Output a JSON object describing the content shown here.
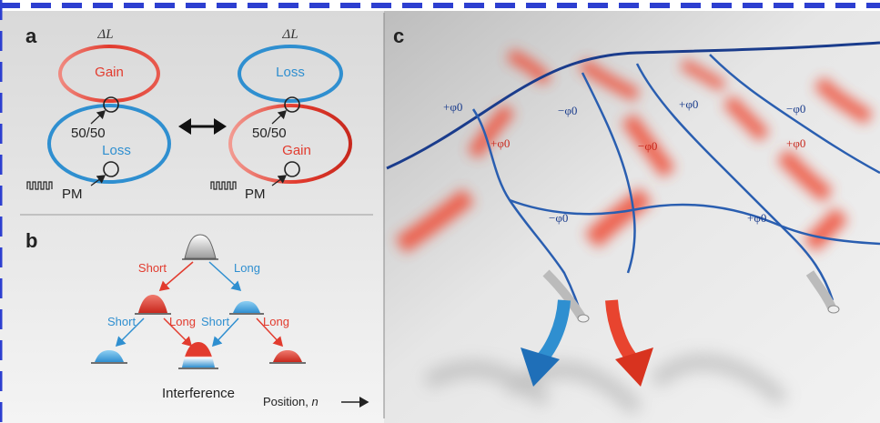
{
  "colors": {
    "gain_red": "#e23b2e",
    "loss_blue": "#2f8fd0",
    "fiber_blue": "#1d4f9a",
    "dark_blue": "#1a3c8c",
    "panel_bg": "#ececec"
  },
  "panel_a": {
    "letter": "a",
    "left_loop": {
      "delta": "ΔL",
      "top_label": "Gain",
      "coupler": "50/50",
      "bottom_label": "Loss",
      "modulator": "PM"
    },
    "right_loop": {
      "delta": "ΔL",
      "top_label": "Loss",
      "coupler": "50/50",
      "bottom_label": "Gain",
      "modulator": "PM"
    },
    "swap_icon": "double-arrow-icon"
  },
  "panel_b": {
    "letter": "b",
    "top_left_label": "Short",
    "top_right_label": "Long",
    "mid_labels": [
      "Short",
      "Long",
      "Short",
      "Long"
    ],
    "interference": "Interference",
    "position": "Position, ",
    "position_n": "n"
  },
  "panel_c": {
    "letter": "c",
    "phase_labels": [
      "+φ0",
      "−φ0",
      "+φ0",
      "−φ0",
      "+φ0",
      "−φ0",
      "+φ0",
      "−φ0",
      "+φ0"
    ],
    "arrow_icons": [
      "blue-arrow-icon",
      "red-arrow-icon"
    ]
  }
}
